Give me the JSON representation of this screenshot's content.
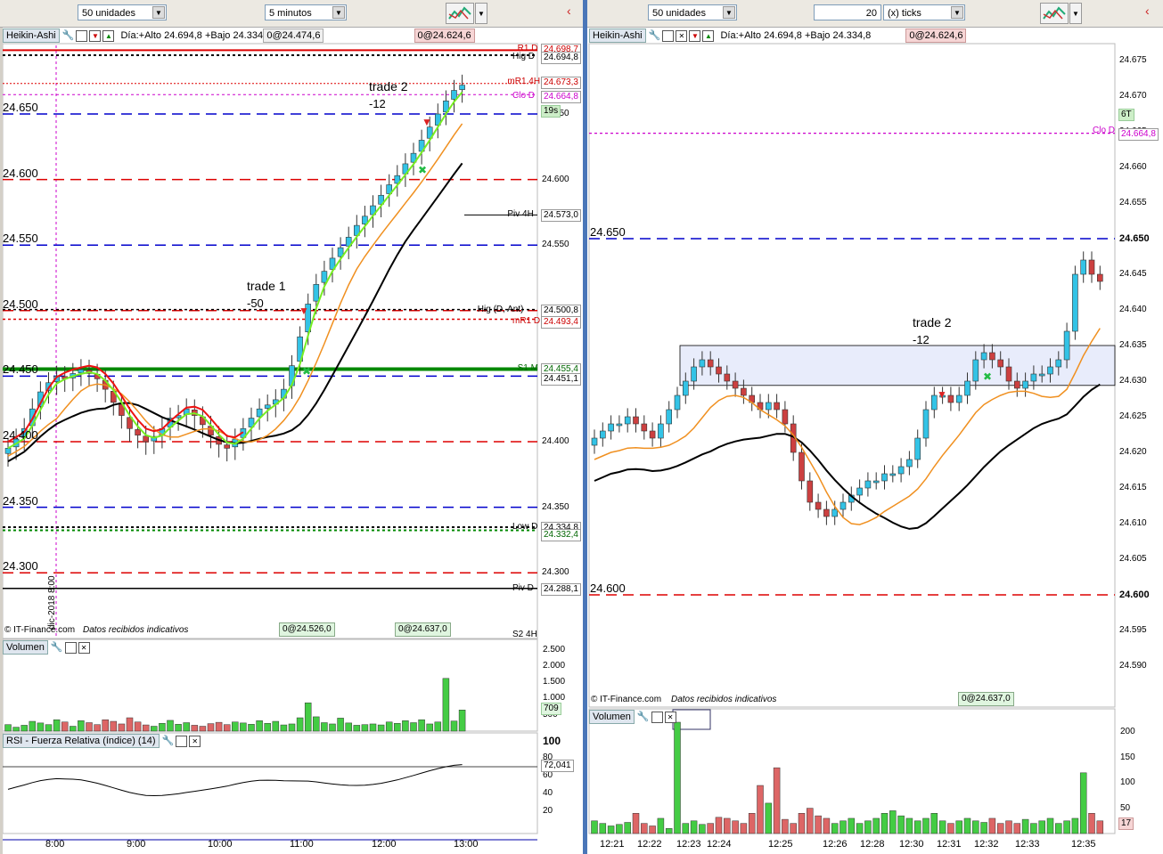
{
  "left": {
    "toolbar": {
      "units": "50 unidades",
      "timeframe": "5 minutos"
    },
    "header": {
      "style": "Heikin-Ashi",
      "info": "Día:+Alto 24.694,8 +Bajo 24.334,8",
      "tag1": "0@24.474,6",
      "tag2": "0@24.624,6"
    },
    "price_levels": [
      {
        "label": "24.650",
        "y": 24650
      },
      {
        "label": "24.600",
        "y": 24600
      },
      {
        "label": "24.550",
        "y": 24550
      },
      {
        "label": "24.500",
        "y": 24500
      },
      {
        "label": "24.450",
        "y": 24450
      },
      {
        "label": "24.400",
        "y": 24400
      },
      {
        "label": "24.350",
        "y": 24350
      },
      {
        "label": "24.300",
        "y": 24300
      }
    ],
    "axis_ticks": [
      "24.650",
      "24.600",
      "24.550",
      "24.500",
      "24.450",
      "24.400",
      "24.350",
      "24.300"
    ],
    "right_labels": [
      {
        "name": "R1 D",
        "value": "24.698,7",
        "color": "#cc0000"
      },
      {
        "name": "Hig D",
        "value": "24.694,8",
        "color": "#000000"
      },
      {
        "name": "mR1 4H",
        "value": "24.673,3",
        "color": "#cc0000"
      },
      {
        "name": "Clo D",
        "value": "24.664,8",
        "color": "#cc00cc"
      },
      {
        "name": "",
        "value": "19s",
        "color": "#000000"
      },
      {
        "name": "Piv 4H",
        "value": "24.573,0",
        "color": "#000000"
      },
      {
        "name": "Hig (D, Ant)",
        "value": "24.500,8",
        "color": "#000000"
      },
      {
        "name": "mR1 D",
        "value": "24.493,4",
        "color": "#cc0000"
      },
      {
        "name": "S1 M",
        "value": "24.455,4",
        "color": "#006600"
      },
      {
        "name": "",
        "value": "24.451,1",
        "color": "#000000"
      },
      {
        "name": "Low D",
        "value": "24.334,8",
        "color": "#000000"
      },
      {
        "name": "",
        "value": "24.332,4",
        "color": "#006600"
      },
      {
        "name": "Piv D",
        "value": "24.288,1",
        "color": "#000000"
      },
      {
        "name": "S2 4H",
        "value": "",
        "color": "#000000"
      }
    ],
    "annotations": [
      {
        "title": "trade 1",
        "value": "-50"
      },
      {
        "title": "trade 2",
        "value": "-12"
      }
    ],
    "vertical_date": "dic-2018 8:00",
    "footer": {
      "credit": "© IT-Finance.com",
      "note": "Datos recibidos indicativos",
      "badge1": "0@24.526,0",
      "badge2": "0@24.637,0"
    },
    "volume": {
      "title": "Volumen",
      "ticks": [
        "2.500",
        "2.000",
        "1.500",
        "1.000",
        "500"
      ],
      "last": "709"
    },
    "rsi": {
      "title": "RSI - Fuerza Relativa (índice) (14)",
      "ticks": [
        "100",
        "80",
        "60",
        "40",
        "20"
      ],
      "last": "72,041"
    },
    "time_axis": [
      "8:00",
      "9:00",
      "10:00",
      "11:00",
      "12:00",
      "13:00"
    ]
  },
  "right": {
    "toolbar": {
      "units": "50 unidades",
      "ticks_value": "20",
      "ticks_unit": "(x) ticks"
    },
    "header": {
      "style": "Heikin-Ashi",
      "info": "Día:+Alto 24.694,8 +Bajo 24.334,8",
      "tag1": "0@24.624,6"
    },
    "price_levels": [
      {
        "label": "24.650",
        "y": 24650
      },
      {
        "label": "24.600",
        "y": 24600
      }
    ],
    "axis_ticks": [
      "24.675",
      "24.670",
      "24.665",
      "24.660",
      "24.655",
      "24.650",
      "24.645",
      "24.640",
      "24.635",
      "24.630",
      "24.625",
      "24.620",
      "24.615",
      "24.610",
      "24.605",
      "24.600",
      "24.595",
      "24.590"
    ],
    "right_labels": [
      {
        "name": "Clo D",
        "value": "24.664,8",
        "color": "#cc00cc"
      },
      {
        "name": "",
        "value": "6T",
        "color": "#000000"
      }
    ],
    "annotation": {
      "title": "trade 2",
      "value": "-12"
    },
    "footer": {
      "credit": "© IT-Finance.com",
      "note": "Datos recibidos indicativos",
      "badge": "0@24.637,0"
    },
    "volume": {
      "title": "Volumen",
      "ticks": [
        "200",
        "150",
        "100",
        "50"
      ],
      "last": "17"
    },
    "time_axis": [
      "12:21",
      "12:22",
      "12:23",
      "12:24",
      "12:25",
      "12:26",
      "12:28",
      "12:30",
      "12:31",
      "12:32",
      "12:33",
      "12:35"
    ]
  },
  "colors": {
    "up": "#33c3e6",
    "down": "#cc4040",
    "dash_blue": "#0000cc",
    "dash_red": "#dd0000",
    "green": "#007700"
  }
}
